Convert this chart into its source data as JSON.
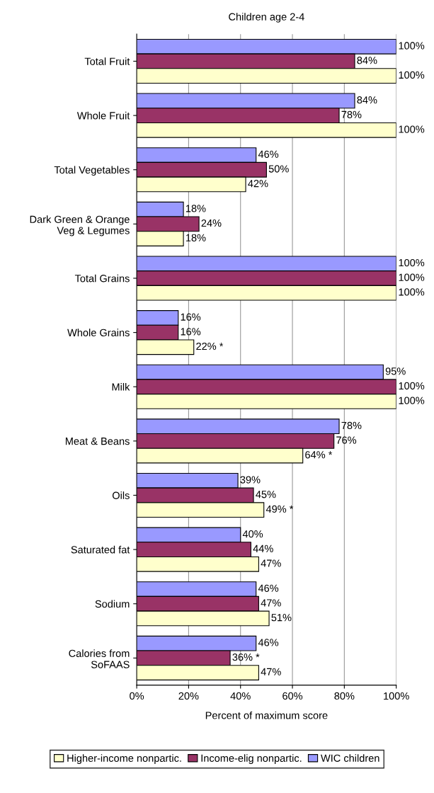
{
  "chart_data": {
    "type": "bar",
    "orientation": "horizontal",
    "title": "Children age 2-4",
    "xlabel": "Percent of maximum score",
    "categories": [
      "Total Fruit",
      "Whole Fruit",
      "Total Vegetables",
      "Dark Green & Orange\nVeg & Legumes",
      "Total Grains",
      "Whole Grains",
      "Milk",
      "Meat & Beans",
      "Oils",
      "Saturated fat",
      "Sodium",
      "Calories from\nSoFAAS"
    ],
    "series": [
      {
        "name": "WIC children",
        "color": "#9999ff",
        "values": [
          100,
          84,
          46,
          18,
          100,
          16,
          95,
          78,
          39,
          40,
          46,
          46
        ],
        "value_labels": [
          "100%",
          "84%",
          "46%",
          "18%",
          "100%",
          "16%",
          "95%",
          "78%",
          "39%",
          "40%",
          "46%",
          "46%"
        ]
      },
      {
        "name": "Income-elig nonpartic.",
        "color": "#993366",
        "values": [
          84,
          78,
          50,
          24,
          100,
          16,
          100,
          76,
          45,
          44,
          47,
          36
        ],
        "value_labels": [
          "84%",
          "78%",
          "50%",
          "24%",
          "100%",
          "16%",
          "100%",
          "76%",
          "45%",
          "44%",
          "47%",
          "36% *"
        ]
      },
      {
        "name": "Higher-income nonpartic.",
        "color": "#ffffcc",
        "values": [
          100,
          100,
          42,
          18,
          100,
          22,
          100,
          64,
          49,
          47,
          51,
          47
        ],
        "value_labels": [
          "100%",
          "100%",
          "42%",
          "18%",
          "100%",
          "22% *",
          "100%",
          "64% *",
          "49% *",
          "47%",
          "51%",
          "47%"
        ]
      }
    ],
    "xlim": [
      0,
      100
    ],
    "xticks": [
      {
        "value": 0,
        "label": "0%"
      },
      {
        "value": 20,
        "label": "20%"
      },
      {
        "value": 40,
        "label": "40%"
      },
      {
        "value": 60,
        "label": "60%"
      },
      {
        "value": 80,
        "label": "80%"
      },
      {
        "value": 100,
        "label": "100%"
      }
    ],
    "grid": "x",
    "legend": "bottom"
  }
}
